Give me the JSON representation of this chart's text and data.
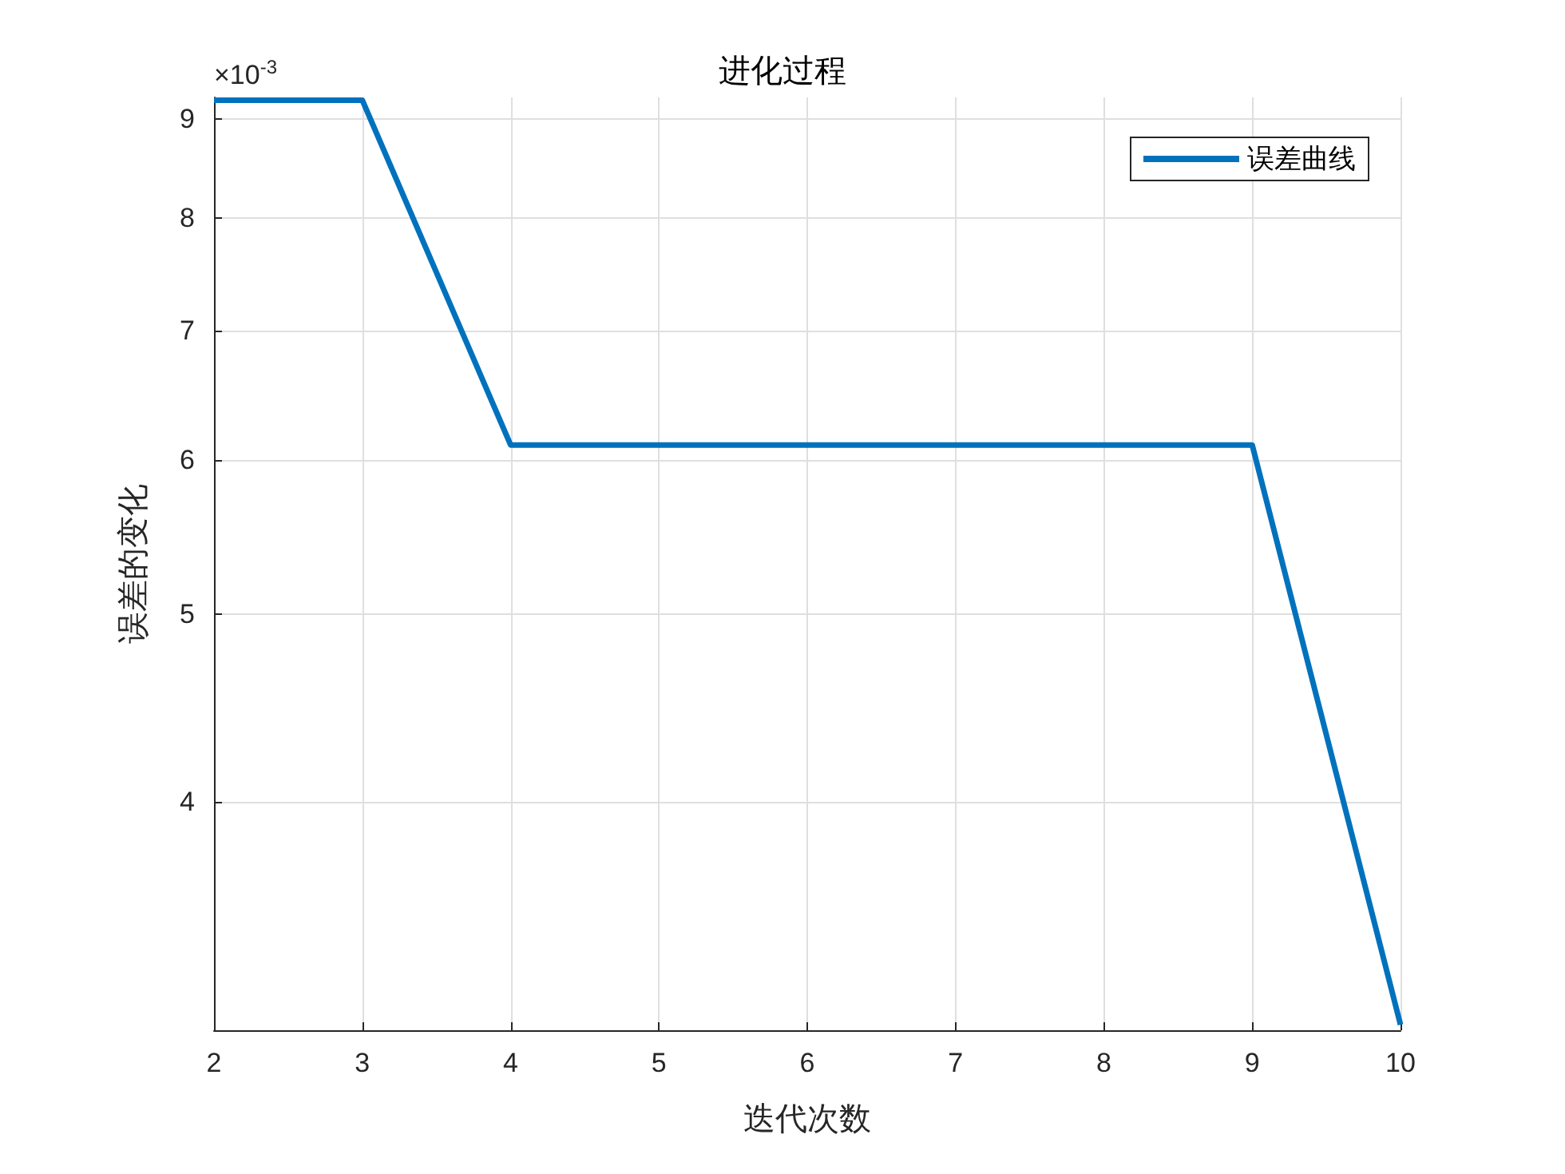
{
  "chart_data": {
    "type": "line",
    "title": "进化过程",
    "xlabel": "迭代次数",
    "ylabel": "误差的变化",
    "annotations": [
      "×10$^{-3}$"
    ],
    "x": [
      2,
      3,
      4,
      5,
      6,
      7,
      8,
      9,
      10
    ],
    "series": [
      {
        "name": "误差曲线",
        "color": "#0072bd",
        "values": [
          9.2,
          9.2,
          6.11,
          6.11,
          6.11,
          6.11,
          6.11,
          6.11,
          3.07
        ]
      }
    ],
    "xlim": [
      2,
      10
    ],
    "xticks": [
      2,
      3,
      4,
      5,
      6,
      7,
      8,
      9,
      10
    ],
    "ylim": [
      3.05,
      9.23
    ],
    "yticks": [
      4,
      5,
      6,
      7,
      8,
      9
    ],
    "log": "y",
    "grid": true,
    "legend": "top right",
    "marker": "none",
    "line_style": "solid"
  }
}
